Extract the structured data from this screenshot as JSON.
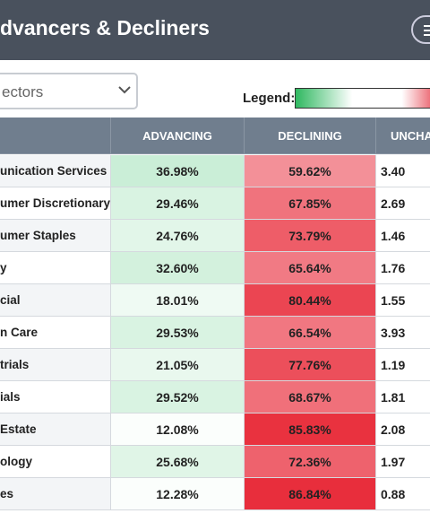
{
  "header": {
    "title": "dvancers & Decliners"
  },
  "filter": {
    "selected": "ectors"
  },
  "legend": {
    "label": "Legend:"
  },
  "table": {
    "columns": [
      "ADVANCING",
      "DECLINING",
      "UNCHA"
    ],
    "rows": [
      [
        "unication Services",
        "36.98%",
        "59.62%",
        "3.40"
      ],
      [
        "umer Discretionary",
        "29.46%",
        "67.85%",
        "2.69"
      ],
      [
        "umer Staples",
        "24.76%",
        "73.79%",
        "1.46"
      ],
      [
        "y",
        "32.60%",
        "65.64%",
        "1.76"
      ],
      [
        "cial",
        "18.01%",
        "80.44%",
        "1.55"
      ],
      [
        "n Care",
        "29.53%",
        "66.54%",
        "3.93"
      ],
      [
        "trials",
        "21.05%",
        "77.76%",
        "1.19"
      ],
      [
        "ials",
        "29.52%",
        "68.67%",
        "1.81"
      ],
      [
        "Estate",
        "12.08%",
        "85.83%",
        "2.08"
      ],
      [
        "ology",
        "25.68%",
        "72.36%",
        "1.97"
      ],
      [
        "es",
        "12.28%",
        "86.84%",
        "0.88"
      ]
    ]
  }
}
